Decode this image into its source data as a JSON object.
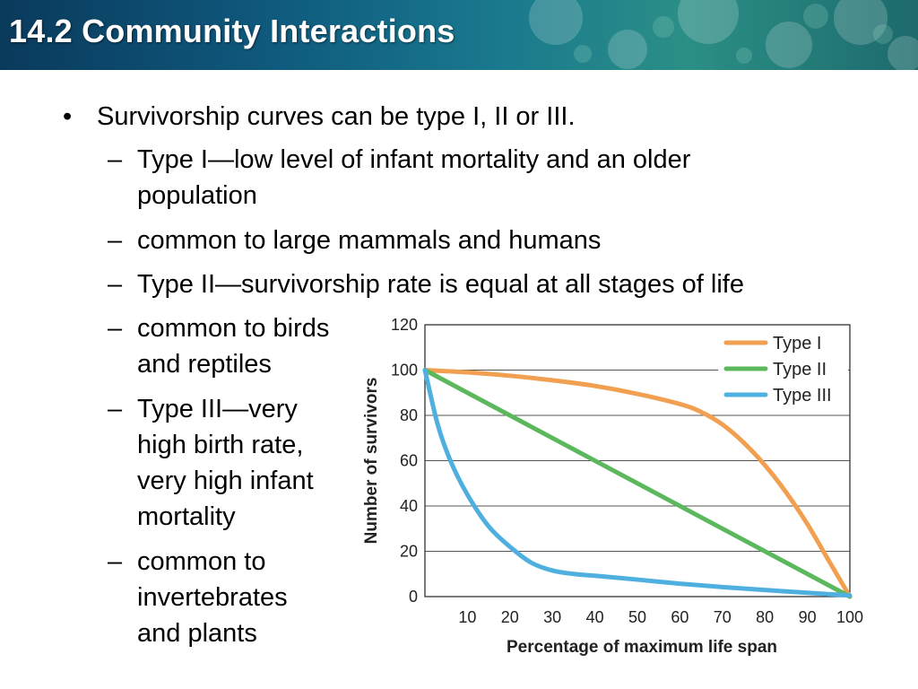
{
  "slide": {
    "title": "14.2 Community Interactions"
  },
  "bullets": {
    "main": "Survivorship curves can be type I, II or III.",
    "sub1_line1": "Type I—low level of infant mortality and an older",
    "sub1_line2": "population",
    "sub2": "common to large mammals and humans",
    "sub3": "Type II—survivorship rate is equal at all stages of life",
    "sub4_line1": "common to birds",
    "sub4_line2": "and reptiles",
    "sub5_line1": "Type III—very",
    "sub5_line2": "high birth rate,",
    "sub5_line3": "very high infant",
    "sub5_line4": "mortality",
    "sub6_line1": "common to",
    "sub6_line2": "invertebrates",
    "sub6_line3": "and plants"
  },
  "chart_data": {
    "type": "line",
    "xlabel": "Percentage of maximum life span",
    "ylabel": "Number of survivors",
    "xlim": [
      0,
      100
    ],
    "ylim": [
      0,
      120
    ],
    "x_ticks": [
      "10",
      "20",
      "30",
      "40",
      "50",
      "60",
      "70",
      "80",
      "90",
      "100"
    ],
    "y_ticks": [
      "0",
      "20",
      "40",
      "60",
      "80",
      "100",
      "120"
    ],
    "grid": "horizontal",
    "legend_position": "top-right",
    "series": [
      {
        "name": "Type I",
        "color": "#f0a050",
        "x": [
          0,
          10,
          20,
          30,
          40,
          50,
          60,
          65,
          70,
          75,
          80,
          85,
          90,
          95,
          100
        ],
        "y": [
          100,
          99,
          97.5,
          95.5,
          93,
          89.5,
          85,
          81.5,
          76,
          68,
          58,
          46,
          32,
          16,
          0
        ]
      },
      {
        "name": "Type II",
        "color": "#5cb85c",
        "x": [
          0,
          100
        ],
        "y": [
          100,
          0
        ]
      },
      {
        "name": "Type III",
        "color": "#4fb0e0",
        "x": [
          0,
          3,
          6,
          10,
          15,
          20,
          25,
          30,
          35,
          40,
          50,
          60,
          70,
          80,
          90,
          100
        ],
        "y": [
          100,
          76,
          60,
          45,
          31,
          22,
          15,
          11.5,
          10,
          9.2,
          7.5,
          5.7,
          4.2,
          2.9,
          1.7,
          0.5
        ]
      }
    ]
  }
}
